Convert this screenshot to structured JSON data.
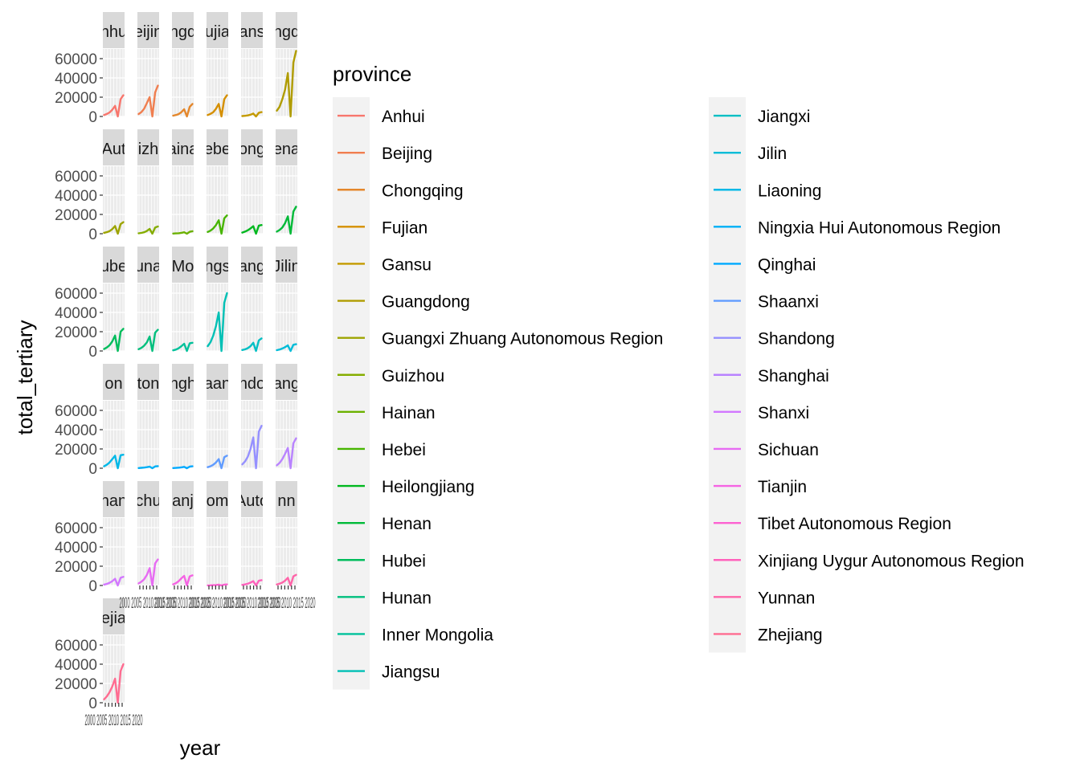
{
  "chart_data": {
    "type": "line",
    "facet": "province",
    "xlabel": "year",
    "ylabel": "total_tertiary",
    "ylim": [
      0,
      70000
    ],
    "y_ticks": [
      0,
      20000,
      40000,
      60000
    ],
    "y_tick_labels": [
      "0",
      "20000",
      "40000",
      "60000"
    ],
    "legend_title": "province",
    "legend_position": "right",
    "grid": true,
    "panel_background": "#ebebeb",
    "strip_background": "#d9d9d9",
    "x_tick_label_text": "2000 2005 2010 2015 2020",
    "series": [
      {
        "name": "Anhui",
        "strip": "nhu",
        "color": "#F8766D",
        "values": [
          1500,
          2600,
          4200,
          7000,
          11000,
          0,
          18000,
          22000
        ]
      },
      {
        "name": "Beijing",
        "strip": "eijin",
        "color": "#F07E4F",
        "values": [
          2500,
          4500,
          8000,
          14000,
          20000,
          0,
          25000,
          32000
        ]
      },
      {
        "name": "Chongqing",
        "strip": "ngq",
        "color": "#E4872C",
        "values": [
          800,
          1500,
          2500,
          4500,
          7500,
          0,
          10000,
          13000
        ]
      },
      {
        "name": "Fujian",
        "strip": "ujia",
        "color": "#D58F00",
        "values": [
          1500,
          2700,
          4500,
          8000,
          13000,
          0,
          18000,
          22000
        ]
      },
      {
        "name": "Gansu",
        "strip": "ans",
        "color": "#C49A00",
        "values": [
          400,
          700,
          1100,
          1800,
          3000,
          0,
          3800,
          4500
        ]
      },
      {
        "name": "Guangdong",
        "strip": "ngd",
        "color": "#B09C00",
        "values": [
          6000,
          10000,
          18000,
          28000,
          45000,
          0,
          56000,
          68000
        ]
      },
      {
        "name": "Guangxi Zhuang Autonomous Region",
        "strip": "Aut",
        "color": "#9DA400",
        "values": [
          900,
          1600,
          2700,
          4800,
          8000,
          0,
          10000,
          12000
        ]
      },
      {
        "name": "Guizhou",
        "strip": "izh",
        "color": "#85AD00",
        "values": [
          400,
          800,
          1500,
          2800,
          5000,
          0,
          6500,
          7500
        ]
      },
      {
        "name": "Hainan",
        "strip": "aina",
        "color": "#6BB100",
        "values": [
          150,
          300,
          500,
          900,
          1500,
          0,
          2000,
          2600
        ]
      },
      {
        "name": "Hebei",
        "strip": "ebe",
        "color": "#47B500",
        "values": [
          1800,
          3200,
          5500,
          9000,
          14000,
          0,
          16000,
          19000
        ]
      },
      {
        "name": "Heilongjiang",
        "strip": "ong",
        "color": "#00B81F",
        "values": [
          1200,
          2200,
          3600,
          5500,
          7800,
          0,
          8400,
          9000
        ]
      },
      {
        "name": "Henan",
        "strip": "ena",
        "color": "#00BA38",
        "values": [
          2200,
          3800,
          6500,
          11000,
          18000,
          0,
          23000,
          28000
        ]
      },
      {
        "name": "Hubei",
        "strip": "ube",
        "color": "#00BD5C",
        "values": [
          2000,
          3600,
          6000,
          10000,
          16000,
          0,
          20000,
          23000
        ]
      },
      {
        "name": "Hunan",
        "strip": "una",
        "color": "#00BF7D",
        "values": [
          1800,
          3200,
          5500,
          9000,
          15000,
          0,
          19000,
          22000
        ]
      },
      {
        "name": "Inner Mongolia",
        "strip": "Mo",
        "color": "#00C19A",
        "values": [
          700,
          1400,
          2800,
          5000,
          7500,
          0,
          8000,
          8500
        ]
      },
      {
        "name": "Jiangsu",
        "strip": "ngs",
        "color": "#00C0B5",
        "values": [
          5000,
          9000,
          16000,
          26000,
          40000,
          0,
          50000,
          60000
        ]
      },
      {
        "name": "Jiangxi",
        "strip": "ang",
        "color": "#00BFC4",
        "values": [
          1000,
          1700,
          2900,
          5000,
          8500,
          0,
          11000,
          13000
        ]
      },
      {
        "name": "Jilin",
        "strip": "Jilin",
        "color": "#00BCD8",
        "values": [
          800,
          1500,
          2600,
          4000,
          5800,
          0,
          6400,
          7000
        ]
      },
      {
        "name": "Liaoning",
        "strip": "on",
        "color": "#00B8E7",
        "values": [
          2000,
          3600,
          6000,
          9500,
          13000,
          0,
          13500,
          14000
        ]
      },
      {
        "name": "Ningxia Hui Autonomous Region",
        "strip": "ton",
        "color": "#00B0F6",
        "values": [
          200,
          400,
          700,
          1100,
          1600,
          0,
          1900,
          2200
        ]
      },
      {
        "name": "Qinghai",
        "strip": "ngh",
        "color": "#00A9FF",
        "values": [
          150,
          300,
          550,
          900,
          1400,
          0,
          1700,
          2000
        ]
      },
      {
        "name": "Shaanxi",
        "strip": "aan",
        "color": "#619CFF",
        "values": [
          1100,
          2000,
          3600,
          6000,
          9500,
          0,
          11500,
          13000
        ]
      },
      {
        "name": "Shandong",
        "strip": "ndo",
        "color": "#9590FF",
        "values": [
          4000,
          7000,
          12000,
          20000,
          32000,
          0,
          38000,
          44000
        ]
      },
      {
        "name": "Shanghai",
        "strip": "ang",
        "color": "#B983FF",
        "values": [
          3000,
          5500,
          9500,
          15000,
          21000,
          0,
          26000,
          31000
        ]
      },
      {
        "name": "Shanxi",
        "strip": "han",
        "color": "#D277FF",
        "values": [
          900,
          1600,
          2800,
          4500,
          7000,
          0,
          8000,
          9000
        ]
      },
      {
        "name": "Sichuan",
        "strip": "chu",
        "color": "#E76BF3",
        "values": [
          2200,
          3800,
          6500,
          11000,
          18000,
          0,
          23000,
          27000
        ]
      },
      {
        "name": "Tianjin",
        "strip": "anj",
        "color": "#F564E3",
        "values": [
          1200,
          2400,
          4500,
          7500,
          10000,
          0,
          9500,
          10500
        ]
      },
      {
        "name": "Tibet Autonomous Region",
        "strip": "om",
        "color": "#FD61D1",
        "values": [
          100,
          180,
          300,
          500,
          800,
          0,
          950,
          1100
        ]
      },
      {
        "name": "Xinjiang Uygur Autonomous Region",
        "strip": "Auto",
        "color": "#FF62BC",
        "values": [
          600,
          1100,
          1800,
          3000,
          4500,
          0,
          5000,
          5500
        ]
      },
      {
        "name": "Yunnan",
        "strip": "nn",
        "color": "#FF65A9",
        "values": [
          1000,
          1800,
          3000,
          5000,
          8000,
          0,
          9500,
          11000
        ]
      },
      {
        "name": "Zhejiang",
        "strip": "ejia",
        "color": "#FF6C91",
        "values": [
          3500,
          6500,
          11000,
          17000,
          25000,
          0,
          33000,
          40000
        ]
      }
    ]
  }
}
